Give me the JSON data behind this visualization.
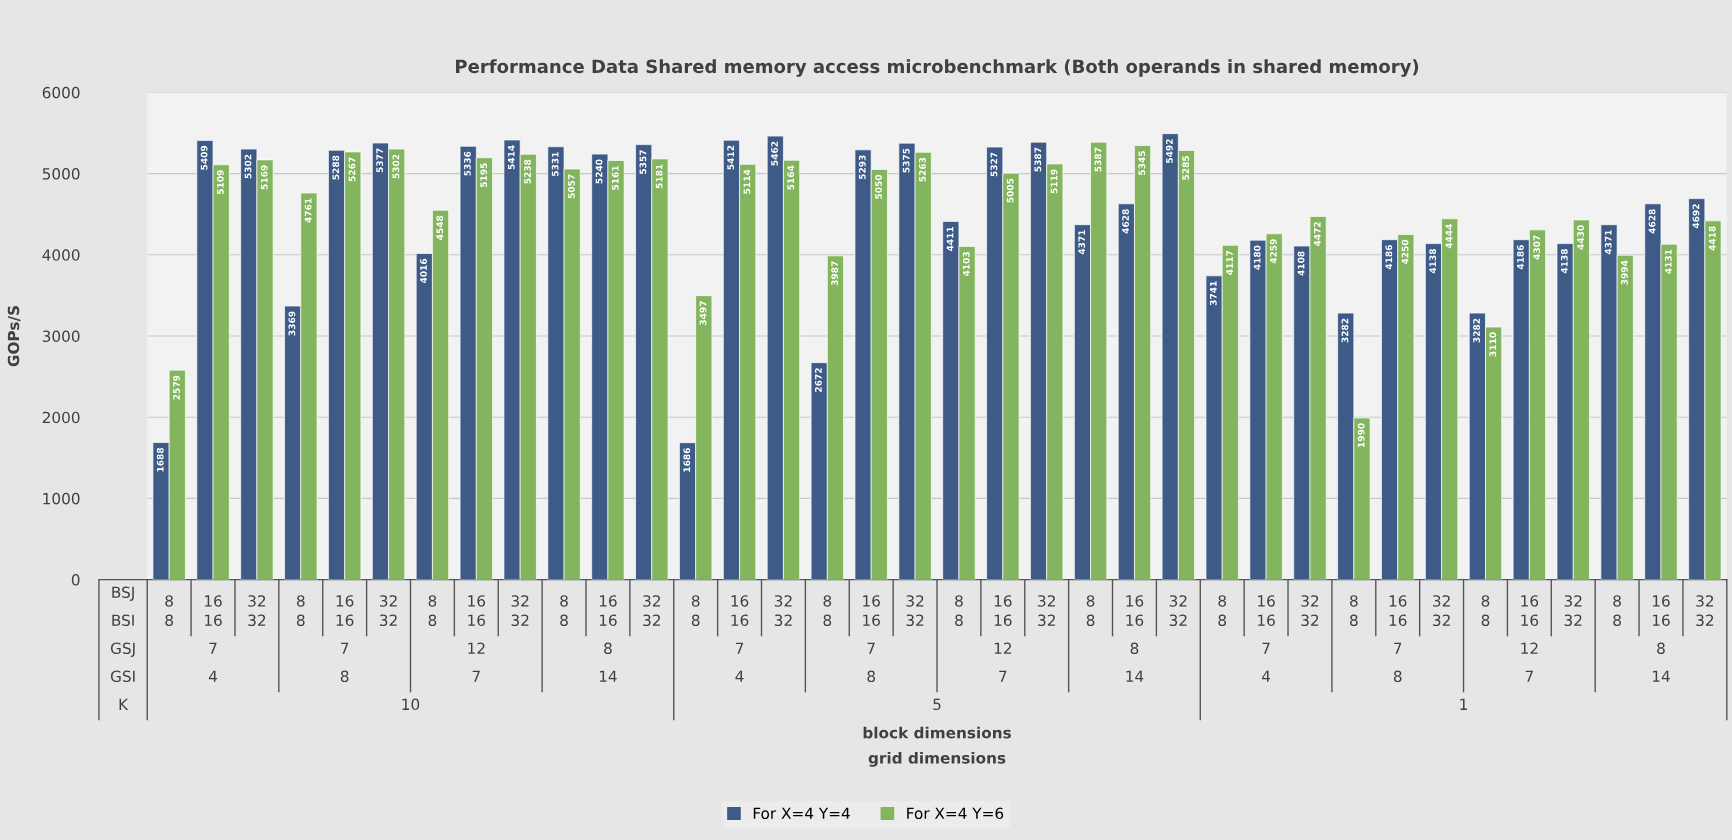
{
  "chart_data": {
    "type": "bar",
    "title": "Performance Data Shared memory access microbenchmark (Both operands in shared memory)",
    "ylabel": "GOPs/S",
    "categories": [
      "8",
      "16",
      "32",
      "8",
      "16",
      "32",
      "8",
      "16",
      "32",
      "8",
      "16",
      "32",
      "8",
      "16",
      "32",
      "8",
      "16",
      "32",
      "8",
      "16",
      "32",
      "8",
      "16",
      "32",
      "8",
      "16",
      "32",
      "8",
      "16",
      "32",
      "8",
      "16",
      "32",
      "8",
      "16",
      "32"
    ],
    "series": [
      {
        "name": "For X=4 Y=4",
        "color": "#3e5a87",
        "values": [
          1688,
          5409,
          5302,
          3369,
          5288,
          5377,
          4016,
          5336,
          5414,
          5331,
          5240,
          5357,
          1686,
          5412,
          5462,
          2672,
          5293,
          5375,
          4411,
          5327,
          5387,
          4371,
          4628,
          5492,
          3741,
          4180,
          4108,
          3282,
          4186,
          4138,
          3282,
          4186,
          4138,
          4371,
          4628,
          4692
        ]
      },
      {
        "name": "For X=4 Y=6",
        "color": "#82b55d",
        "values": [
          2579,
          5109,
          5169,
          4761,
          5267,
          5302,
          4548,
          5195,
          5238,
          5057,
          5161,
          5181,
          3497,
          5114,
          5164,
          3987,
          5050,
          5263,
          4103,
          5005,
          5119,
          5387,
          5345,
          5285,
          4117,
          4259,
          4472,
          1990,
          4250,
          4444,
          3110,
          4307,
          4430,
          3994,
          4131,
          4418
        ]
      }
    ],
    "annotations": [
      "BSJ",
      "BSI",
      "GSJ",
      "GSI",
      "K",
      "8",
      "16",
      "32",
      "8",
      "16",
      "32",
      "8",
      "16",
      "32",
      "8",
      "16",
      "32",
      "8",
      "16",
      "32",
      "8",
      "16",
      "32",
      "8",
      "16",
      "32",
      "8",
      "16",
      "32",
      "8",
      "16",
      "32",
      "8",
      "16",
      "32",
      "8",
      "16",
      "32",
      "8",
      "16",
      "32",
      "7",
      "7",
      "12",
      "8",
      "7",
      "7",
      "12",
      "8",
      "7",
      "7",
      "12",
      "8",
      "4",
      "8",
      "7",
      "14",
      "4",
      "8",
      "7",
      "14",
      "4",
      "8",
      "7",
      "14",
      "10",
      "5",
      "1",
      "block dimensions",
      "grid dimensions"
    ],
    "ylim": [
      0,
      6000
    ],
    "yticks": [
      0,
      1000,
      2000,
      3000,
      4000,
      5000,
      6000
    ],
    "grid": "y",
    "legend": "bottom",
    "data_labels": true
  }
}
